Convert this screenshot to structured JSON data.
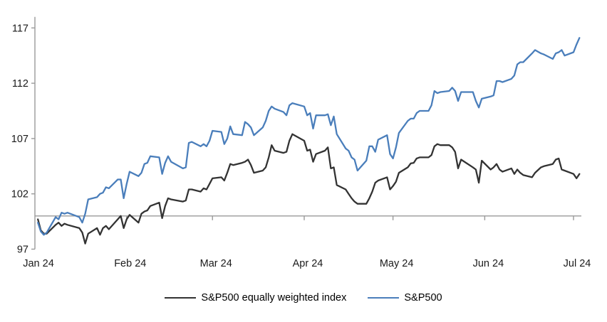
{
  "chart_data": {
    "type": "line",
    "title": "",
    "xlabel": "",
    "ylabel": "",
    "index_base": 100,
    "grid": false,
    "legend_position": "bottom",
    "axis_color": "#9a9a9a",
    "label_color": "#1a1a1a",
    "y_axis": {
      "min": 97,
      "max": 118,
      "ticks": [
        97,
        102,
        107,
        112,
        117
      ],
      "crosses_at": 100
    },
    "x_axis": {
      "tick_labels": [
        "Jan 24",
        "Feb 24",
        "Mar 24",
        "Apr 24",
        "May 24",
        "Jun 24",
        "Jul 24"
      ],
      "tick_dates": [
        "2024-01-01",
        "2024-02-01",
        "2024-03-01",
        "2024-04-01",
        "2024-05-01",
        "2024-06-01",
        "2024-07-01"
      ],
      "range_start": "2024-01-01",
      "range_end": "2024-07-06"
    },
    "dates": [
      "2024-01-02",
      "2024-01-03",
      "2024-01-04",
      "2024-01-05",
      "2024-01-08",
      "2024-01-09",
      "2024-01-10",
      "2024-01-11",
      "2024-01-12",
      "2024-01-16",
      "2024-01-17",
      "2024-01-18",
      "2024-01-19",
      "2024-01-22",
      "2024-01-23",
      "2024-01-24",
      "2024-01-25",
      "2024-01-26",
      "2024-01-29",
      "2024-01-30",
      "2024-01-31",
      "2024-02-01",
      "2024-02-02",
      "2024-02-05",
      "2024-02-06",
      "2024-02-07",
      "2024-02-08",
      "2024-02-09",
      "2024-02-12",
      "2024-02-13",
      "2024-02-14",
      "2024-02-15",
      "2024-02-16",
      "2024-02-20",
      "2024-02-21",
      "2024-02-22",
      "2024-02-23",
      "2024-02-26",
      "2024-02-27",
      "2024-02-28",
      "2024-02-29",
      "2024-03-01",
      "2024-03-04",
      "2024-03-05",
      "2024-03-06",
      "2024-03-07",
      "2024-03-08",
      "2024-03-11",
      "2024-03-12",
      "2024-03-13",
      "2024-03-14",
      "2024-03-15",
      "2024-03-18",
      "2024-03-19",
      "2024-03-20",
      "2024-03-21",
      "2024-03-22",
      "2024-03-25",
      "2024-03-26",
      "2024-03-27",
      "2024-03-28",
      "2024-04-01",
      "2024-04-02",
      "2024-04-03",
      "2024-04-04",
      "2024-04-05",
      "2024-04-08",
      "2024-04-09",
      "2024-04-10",
      "2024-04-11",
      "2024-04-12",
      "2024-04-15",
      "2024-04-16",
      "2024-04-17",
      "2024-04-18",
      "2024-04-19",
      "2024-04-22",
      "2024-04-23",
      "2024-04-24",
      "2024-04-25",
      "2024-04-26",
      "2024-04-29",
      "2024-04-30",
      "2024-05-01",
      "2024-05-02",
      "2024-05-03",
      "2024-05-06",
      "2024-05-07",
      "2024-05-08",
      "2024-05-09",
      "2024-05-10",
      "2024-05-13",
      "2024-05-14",
      "2024-05-15",
      "2024-05-16",
      "2024-05-17",
      "2024-05-20",
      "2024-05-21",
      "2024-05-22",
      "2024-05-23",
      "2024-05-24",
      "2024-05-28",
      "2024-05-29",
      "2024-05-30",
      "2024-05-31",
      "2024-06-03",
      "2024-06-04",
      "2024-06-05",
      "2024-06-06",
      "2024-06-07",
      "2024-06-10",
      "2024-06-11",
      "2024-06-12",
      "2024-06-13",
      "2024-06-14",
      "2024-06-17",
      "2024-06-18",
      "2024-06-20",
      "2024-06-21",
      "2024-06-24",
      "2024-06-25",
      "2024-06-26",
      "2024-06-27",
      "2024-06-28",
      "2024-07-01",
      "2024-07-02",
      "2024-07-03"
    ],
    "series": [
      {
        "name": "S&P500 equally weighted index",
        "color": "#333333",
        "values": [
          99.7,
          98.7,
          98.4,
          98.4,
          99.2,
          99.4,
          99.1,
          99.3,
          99.2,
          98.9,
          98.5,
          97.5,
          98.4,
          98.9,
          98.3,
          98.9,
          99.1,
          98.8,
          99.7,
          100.0,
          98.9,
          99.7,
          100.1,
          99.4,
          100.2,
          100.4,
          100.5,
          100.9,
          101.2,
          99.8,
          100.9,
          101.6,
          101.5,
          101.3,
          101.4,
          102.4,
          102.4,
          102.2,
          102.5,
          102.4,
          102.9,
          103.4,
          103.5,
          103.2,
          103.9,
          104.7,
          104.6,
          104.8,
          104.9,
          105.1,
          104.6,
          103.9,
          104.1,
          104.4,
          105.3,
          106.4,
          105.9,
          105.7,
          105.8,
          106.8,
          107.4,
          106.8,
          105.9,
          106.0,
          104.9,
          105.6,
          105.9,
          106.2,
          104.3,
          104.4,
          102.8,
          102.4,
          102.0,
          101.6,
          101.3,
          101.1,
          101.1,
          101.6,
          102.2,
          103.0,
          103.2,
          103.5,
          102.4,
          102.7,
          103.1,
          103.9,
          104.4,
          104.75,
          104.8,
          105.2,
          105.3,
          105.3,
          105.5,
          106.3,
          106.5,
          106.4,
          106.4,
          106.2,
          105.8,
          104.3,
          105.1,
          104.4,
          104.2,
          103.0,
          105.0,
          104.2,
          104.4,
          104.7,
          104.2,
          104.0,
          104.3,
          103.8,
          104.2,
          103.9,
          103.7,
          103.5,
          103.9,
          104.4,
          104.5,
          104.7,
          105.1,
          105.2,
          104.2,
          104.1,
          103.8,
          103.4,
          103.8
        ]
      },
      {
        "name": "S&P500",
        "color": "#4a7ebb",
        "values": [
          99.4,
          98.6,
          98.3,
          98.5,
          99.9,
          99.7,
          100.3,
          100.2,
          100.3,
          99.9,
          99.4,
          100.2,
          101.5,
          101.7,
          102.0,
          102.1,
          102.6,
          102.5,
          103.3,
          103.3,
          101.6,
          102.9,
          104.0,
          103.6,
          103.9,
          104.7,
          104.8,
          105.4,
          105.3,
          103.8,
          104.8,
          105.4,
          104.9,
          104.3,
          104.4,
          106.6,
          106.7,
          106.3,
          106.5,
          106.3,
          106.8,
          107.7,
          107.6,
          106.5,
          107.0,
          108.1,
          107.4,
          107.3,
          108.5,
          108.3,
          108.0,
          107.3,
          108.0,
          108.6,
          109.5,
          109.9,
          109.7,
          109.4,
          109.1,
          110.0,
          110.2,
          109.9,
          109.1,
          109.3,
          107.9,
          109.1,
          109.1,
          109.2,
          108.2,
          109.0,
          107.4,
          106.1,
          105.9,
          105.3,
          105.1,
          104.1,
          105.0,
          106.3,
          106.3,
          105.8,
          106.9,
          107.3,
          105.6,
          105.2,
          106.2,
          107.5,
          108.6,
          108.8,
          108.8,
          109.3,
          109.5,
          109.5,
          110.0,
          111.3,
          111.1,
          111.2,
          111.3,
          111.6,
          111.3,
          110.4,
          111.2,
          111.2,
          110.4,
          109.8,
          110.6,
          110.8,
          110.9,
          112.2,
          112.2,
          112.1,
          112.4,
          112.7,
          113.7,
          113.9,
          113.9,
          114.7,
          115.0,
          114.7,
          114.6,
          114.2,
          114.7,
          114.8,
          115.0,
          114.5,
          114.8,
          115.5,
          116.1
        ]
      }
    ]
  },
  "legend": {
    "item1_label": "S&P500 equally weighted index",
    "item2_label": "S&P500"
  }
}
